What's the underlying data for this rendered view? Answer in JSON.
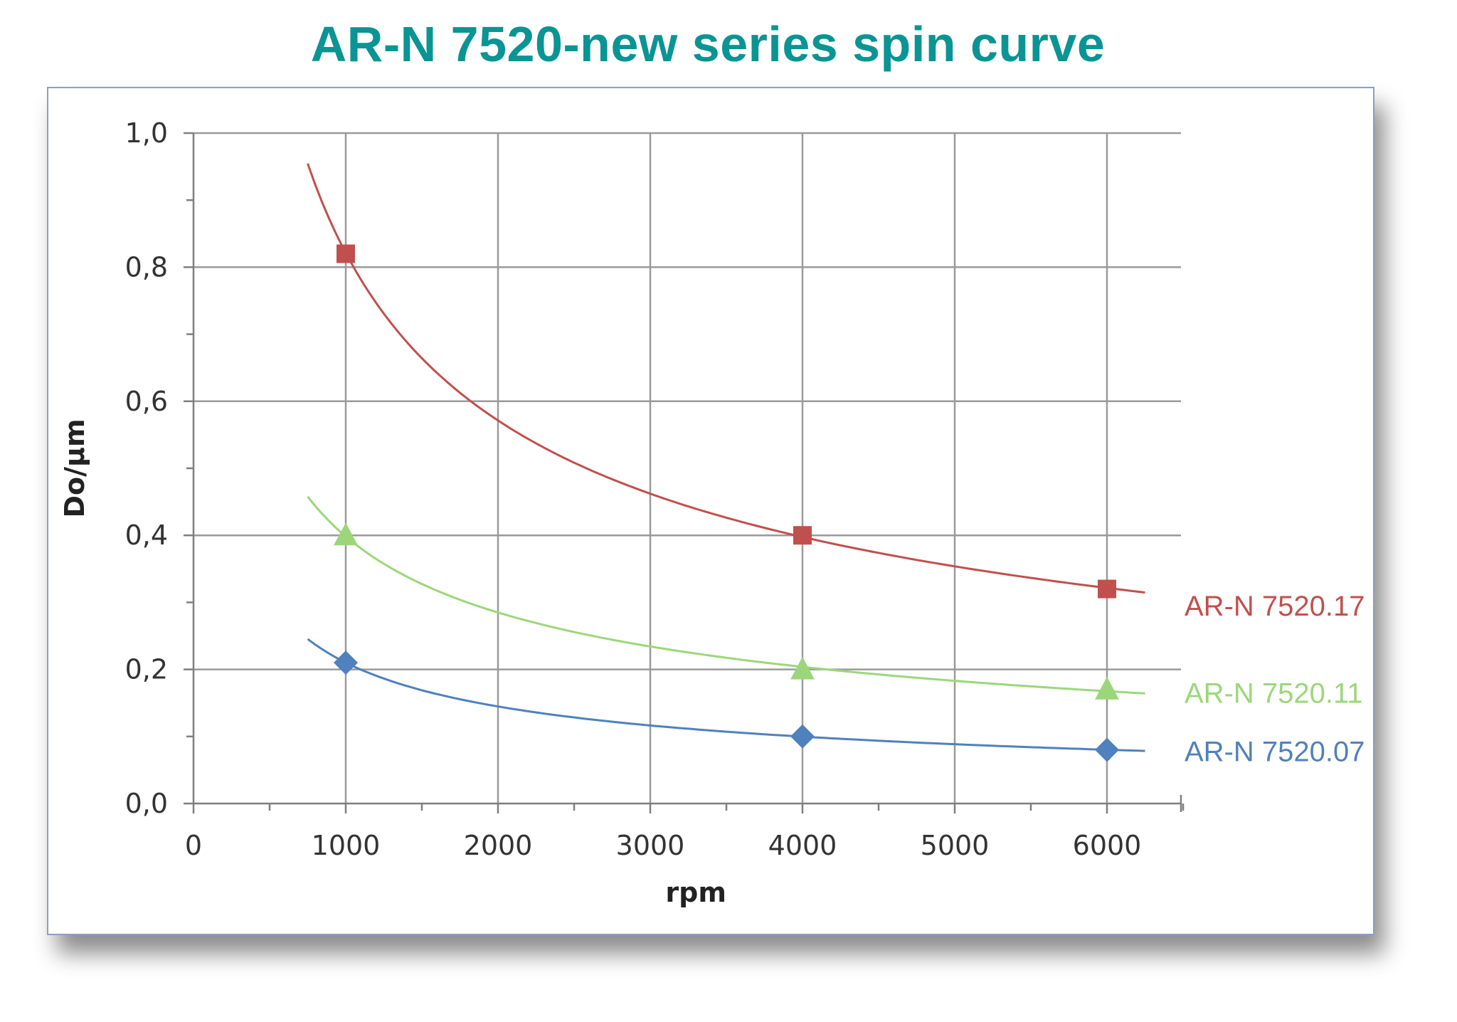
{
  "title": "AR-N 7520-new series spin curve",
  "chart_data": {
    "type": "line",
    "xlabel": "rpm",
    "ylabel": "Do/µm",
    "xlim": [
      0,
      6500
    ],
    "ylim": [
      0,
      1.0
    ],
    "x_ticks": [
      "0",
      "1000",
      "2000",
      "3000",
      "4000",
      "5000",
      "6000"
    ],
    "y_ticks": [
      "0,0",
      "0,2",
      "0,4",
      "0,6",
      "0,8",
      "1,0"
    ],
    "grid": true,
    "legend_placement": "right",
    "series": [
      {
        "name": "AR-N 7520.17",
        "color": "#c0504d",
        "marker": "square",
        "points": [
          [
            1000,
            0.82
          ],
          [
            4000,
            0.4
          ],
          [
            6000,
            0.32
          ]
        ],
        "fit_curve": {
          "x_range": [
            750,
            6250
          ]
        }
      },
      {
        "name": "AR-N 7520.11",
        "color": "#9bd77a",
        "marker": "triangle",
        "points": [
          [
            1000,
            0.4
          ],
          [
            4000,
            0.2
          ],
          [
            6000,
            0.17
          ]
        ],
        "fit_curve": {
          "x_range": [
            750,
            6250
          ]
        }
      },
      {
        "name": "AR-N 7520.07",
        "color": "#4f81bd",
        "marker": "diamond",
        "points": [
          [
            1000,
            0.21
          ],
          [
            4000,
            0.1
          ],
          [
            6000,
            0.08
          ]
        ],
        "fit_curve": {
          "x_range": [
            750,
            6250
          ]
        }
      }
    ]
  }
}
